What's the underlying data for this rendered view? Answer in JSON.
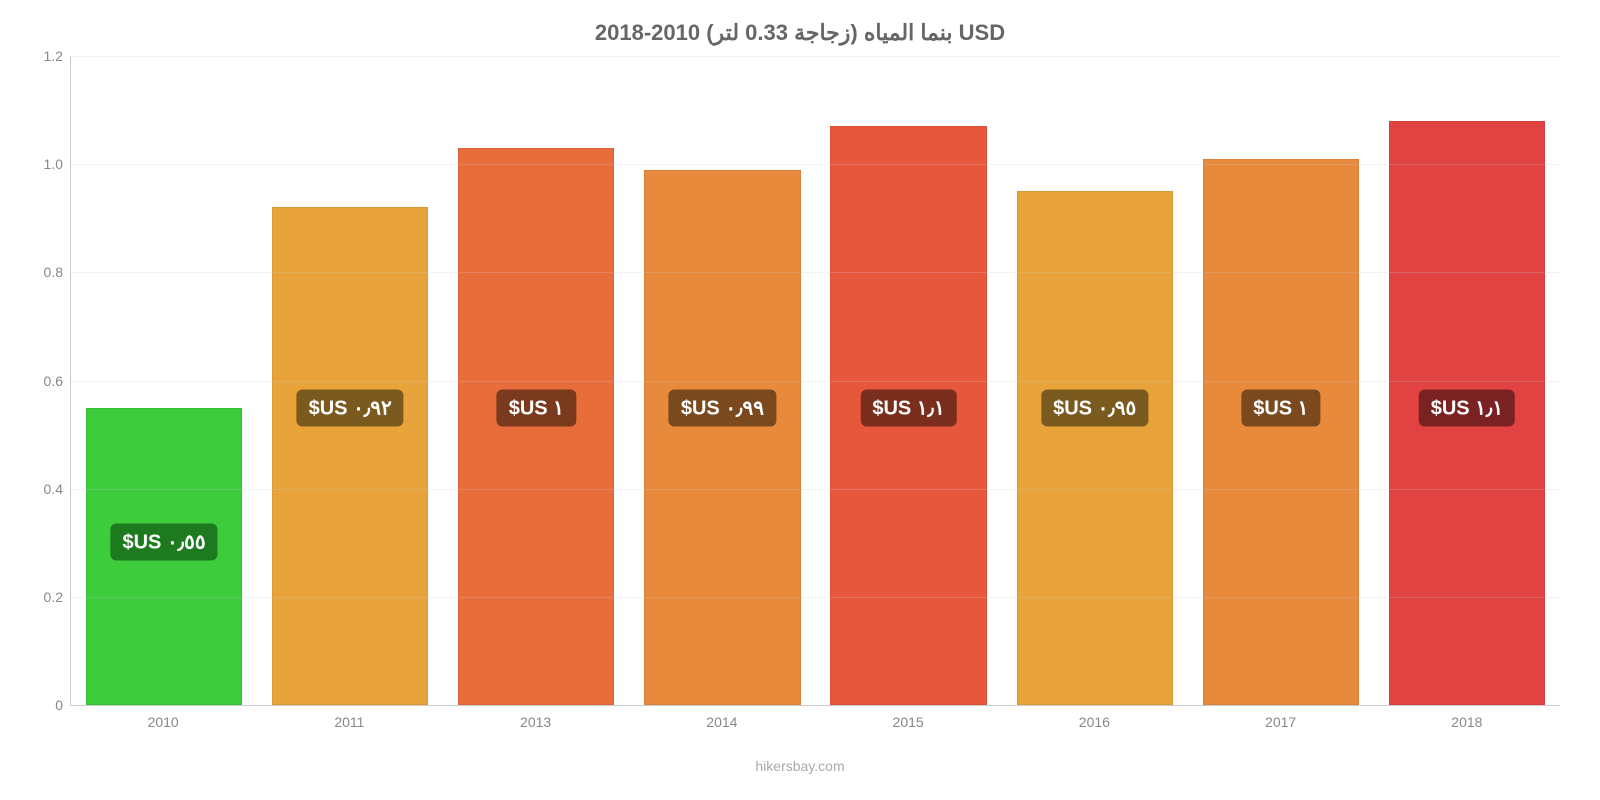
{
  "chart": {
    "type": "bar",
    "title": "بنما المياه (زجاجة 0.33 لتر) 2010-2018 USD",
    "title_color": "#666666",
    "title_fontsize": 22,
    "background_color": "#ffffff",
    "grid_color": "#cccccc",
    "axis_color": "#cccccc",
    "tick_color": "#888888",
    "tick_fontsize": 14,
    "ylim_min": 0,
    "ylim_max": 1.2,
    "yticks": [
      "0",
      "0.2",
      "0.4",
      "0.6",
      "0.8",
      "1.0",
      "1.2"
    ],
    "ytick_values": [
      0,
      0.2,
      0.4,
      0.6,
      0.8,
      1.0,
      1.2
    ],
    "categories": [
      "2010",
      "2011",
      "2013",
      "2014",
      "2015",
      "2016",
      "2017",
      "2018"
    ],
    "values": [
      0.55,
      0.92,
      1.03,
      0.99,
      1.07,
      0.95,
      1.01,
      1.08
    ],
    "bar_colors": [
      "#3ccc3c",
      "#e8a33a",
      "#e76d3b",
      "#e78a3b",
      "#e7573b",
      "#e8a33a",
      "#e78a3b",
      "#e14242"
    ],
    "value_labels": [
      "٠٫٥٥ US$",
      "٠٫٩٢ US$",
      "١ US$",
      "٠٫٩٩ US$",
      "١٫١ US$",
      "٠٫٩٥ US$",
      "١ US$",
      "١٫١ US$"
    ],
    "label_bg_colors": [
      "#1e7a1e",
      "#7a5a1e",
      "#7a3a1e",
      "#7a4a1e",
      "#7a2e1e",
      "#7a5a1e",
      "#7a4a1e",
      "#7a2222"
    ],
    "label_text_color": "#ffffff",
    "label_fontsize": 20,
    "bar_width_pct": 84,
    "attribution": "hikersbay.com",
    "attribution_color": "#aaaaaa"
  }
}
